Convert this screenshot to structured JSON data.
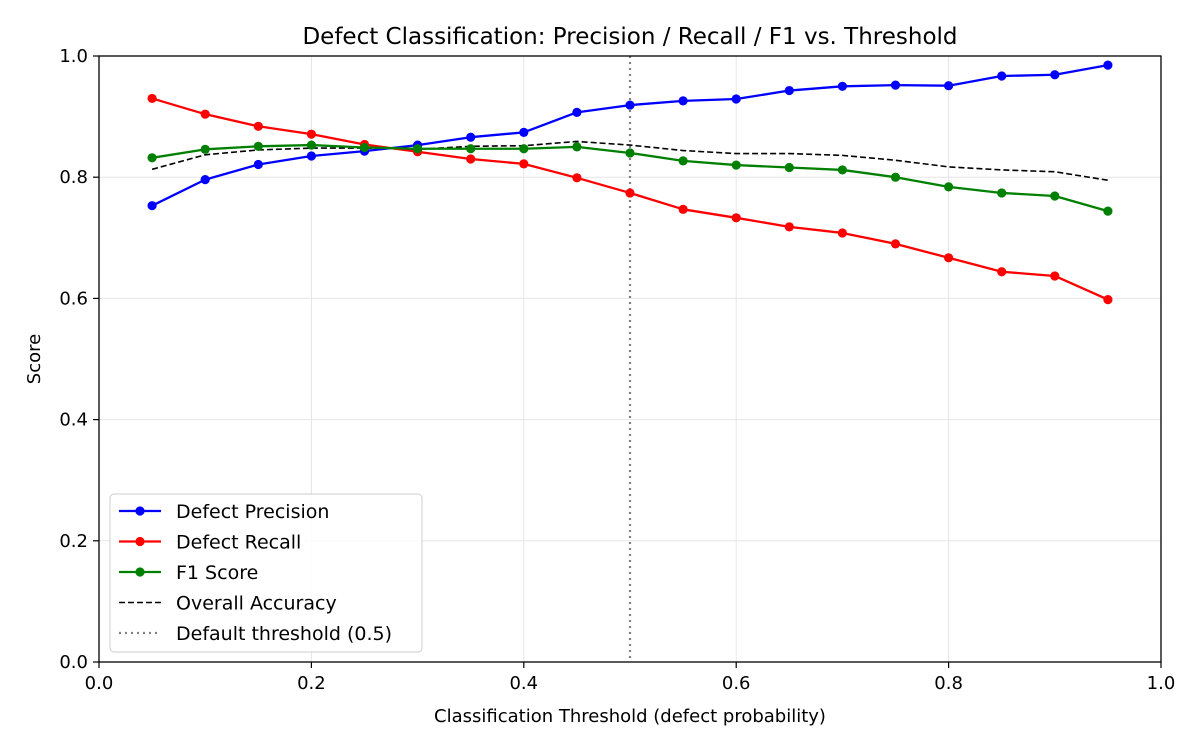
{
  "chart_data": {
    "type": "line",
    "title": "Defect Classification: Precision / Recall / F1 vs. Threshold",
    "xlabel": "Classification Threshold (defect probability)",
    "ylabel": "Score",
    "xlim": [
      0.0,
      1.0
    ],
    "ylim": [
      0.0,
      1.0
    ],
    "xticks": [
      "0.0",
      "0.2",
      "0.4",
      "0.6",
      "0.8",
      "1.0"
    ],
    "yticks": [
      "0.0",
      "0.2",
      "0.4",
      "0.6",
      "0.8",
      "1.0"
    ],
    "grid": true,
    "legend_position": "lower-left",
    "x": [
      0.05,
      0.1,
      0.15,
      0.2,
      0.25,
      0.3,
      0.35,
      0.4,
      0.45,
      0.5,
      0.55,
      0.6,
      0.65,
      0.7,
      0.75,
      0.8,
      0.85,
      0.9,
      0.95
    ],
    "series": [
      {
        "name": "Defect Precision",
        "color": "#0000ff",
        "style": "solid-marker",
        "values": [
          0.753,
          0.796,
          0.821,
          0.835,
          0.843,
          0.853,
          0.866,
          0.874,
          0.907,
          0.919,
          0.926,
          0.929,
          0.943,
          0.95,
          0.952,
          0.951,
          0.967,
          0.969,
          0.985
        ]
      },
      {
        "name": "Defect Recall",
        "color": "#ff0000",
        "style": "solid-marker",
        "values": [
          0.93,
          0.904,
          0.884,
          0.871,
          0.854,
          0.842,
          0.83,
          0.822,
          0.799,
          0.774,
          0.747,
          0.733,
          0.718,
          0.708,
          0.69,
          0.667,
          0.644,
          0.637,
          0.598
        ]
      },
      {
        "name": "F1 Score",
        "color": "#008000",
        "style": "solid-marker",
        "values": [
          0.832,
          0.846,
          0.851,
          0.853,
          0.849,
          0.847,
          0.847,
          0.847,
          0.85,
          0.84,
          0.827,
          0.82,
          0.816,
          0.812,
          0.8,
          0.784,
          0.774,
          0.769,
          0.744
        ]
      },
      {
        "name": "Overall Accuracy",
        "color": "#000000",
        "style": "dashed",
        "values": [
          0.813,
          0.837,
          0.845,
          0.848,
          0.848,
          0.846,
          0.851,
          0.852,
          0.859,
          0.853,
          0.844,
          0.839,
          0.839,
          0.836,
          0.828,
          0.817,
          0.812,
          0.809,
          0.795
        ]
      }
    ],
    "reference_lines": [
      {
        "name": "Default threshold (0.5)",
        "x": 0.5,
        "color": "#808080",
        "style": "dotted"
      }
    ]
  }
}
